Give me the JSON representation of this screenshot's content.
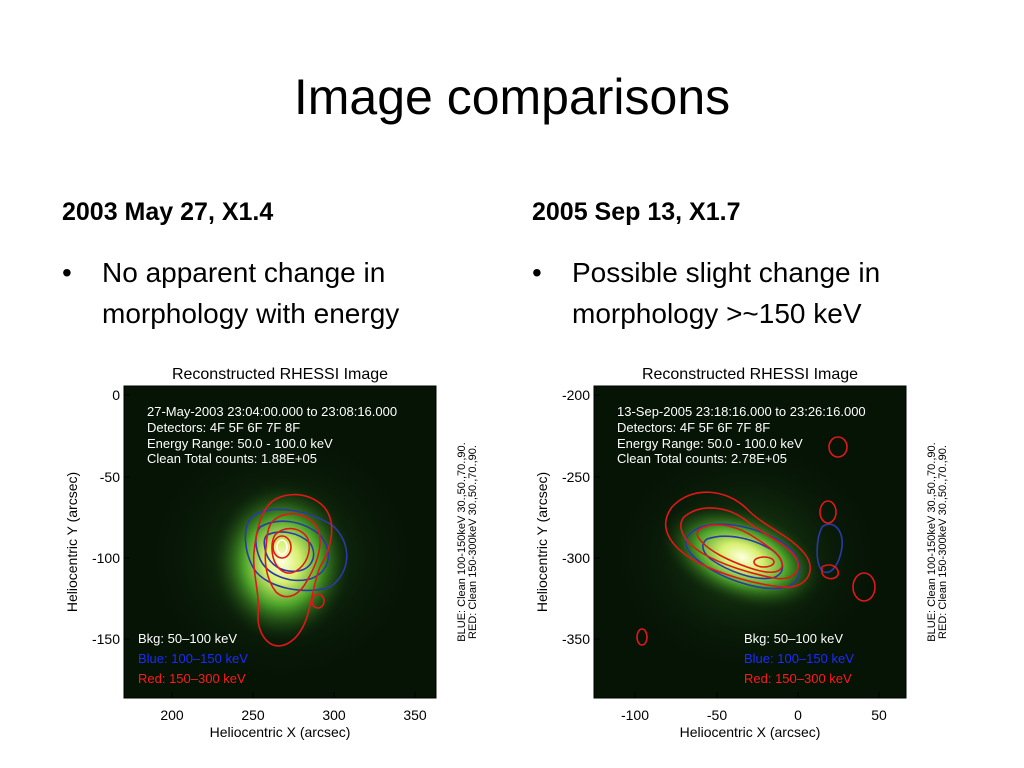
{
  "slide": {
    "title": "Image comparisons"
  },
  "left": {
    "heading": "2003 May 27, X1.4",
    "bullet": "No apparent change in morphology with energy",
    "plot": {
      "title": "Reconstructed RHESSI Image",
      "info": [
        "27-May-2003 23:04:00.000 to 23:08:16.000",
        "Detectors: 4F 5F 6F 7F 8F",
        "Energy Range: 50.0 - 100.0 keV",
        "Clean    Total counts: 1.88E+05"
      ],
      "x_ticks": [
        "200",
        "250",
        "300",
        "350"
      ],
      "y_ticks": [
        "0",
        "-50",
        "-100",
        "-150"
      ],
      "xlabel": "Heliocentric X (arcsec)",
      "ylabel": "Heliocentric Y (arcsec)",
      "side_labels": [
        "BLUE: Clean 100-150keV 30.,50.,70.,90.",
        "RED: Clean 150-300keV 30.,50.,70.,90."
      ],
      "legend": [
        "Bkg: 50–100 keV",
        "Blue: 100–150 keV",
        "Red: 150–300 keV"
      ]
    }
  },
  "right": {
    "heading": "2005 Sep 13, X1.7",
    "bullet": "Possible slight change in morphology >~150 keV",
    "plot": {
      "title": "Reconstructed RHESSI Image",
      "info": [
        "13-Sep-2005 23:18:16.000 to 23:26:16.000",
        "Detectors: 4F 5F 6F 7F 8F",
        "Energy Range: 50.0 - 100.0 keV",
        "Clean    Total counts: 2.78E+05"
      ],
      "x_ticks": [
        "-100",
        "-50",
        "0",
        "50"
      ],
      "y_ticks": [
        "-200",
        "-250",
        "-300",
        "-350"
      ],
      "xlabel": "Heliocentric X (arcsec)",
      "ylabel": "Heliocentric Y (arcsec)",
      "side_labels": [
        "BLUE: Clean 100-150keV 30.,50.,70.,90.",
        "RED: Clean 150-300keV 30.,50.,70.,90."
      ],
      "legend": [
        "Bkg: 50–100 keV",
        "Blue: 100–150 keV",
        "Red: 150–300 keV"
      ]
    }
  },
  "colors": {
    "legend_white": "#ffffff",
    "legend_blue": "#1a2cff",
    "legend_red": "#ff1a1a",
    "contour_red": "#e01818",
    "contour_blue": "#2a3aa8"
  }
}
